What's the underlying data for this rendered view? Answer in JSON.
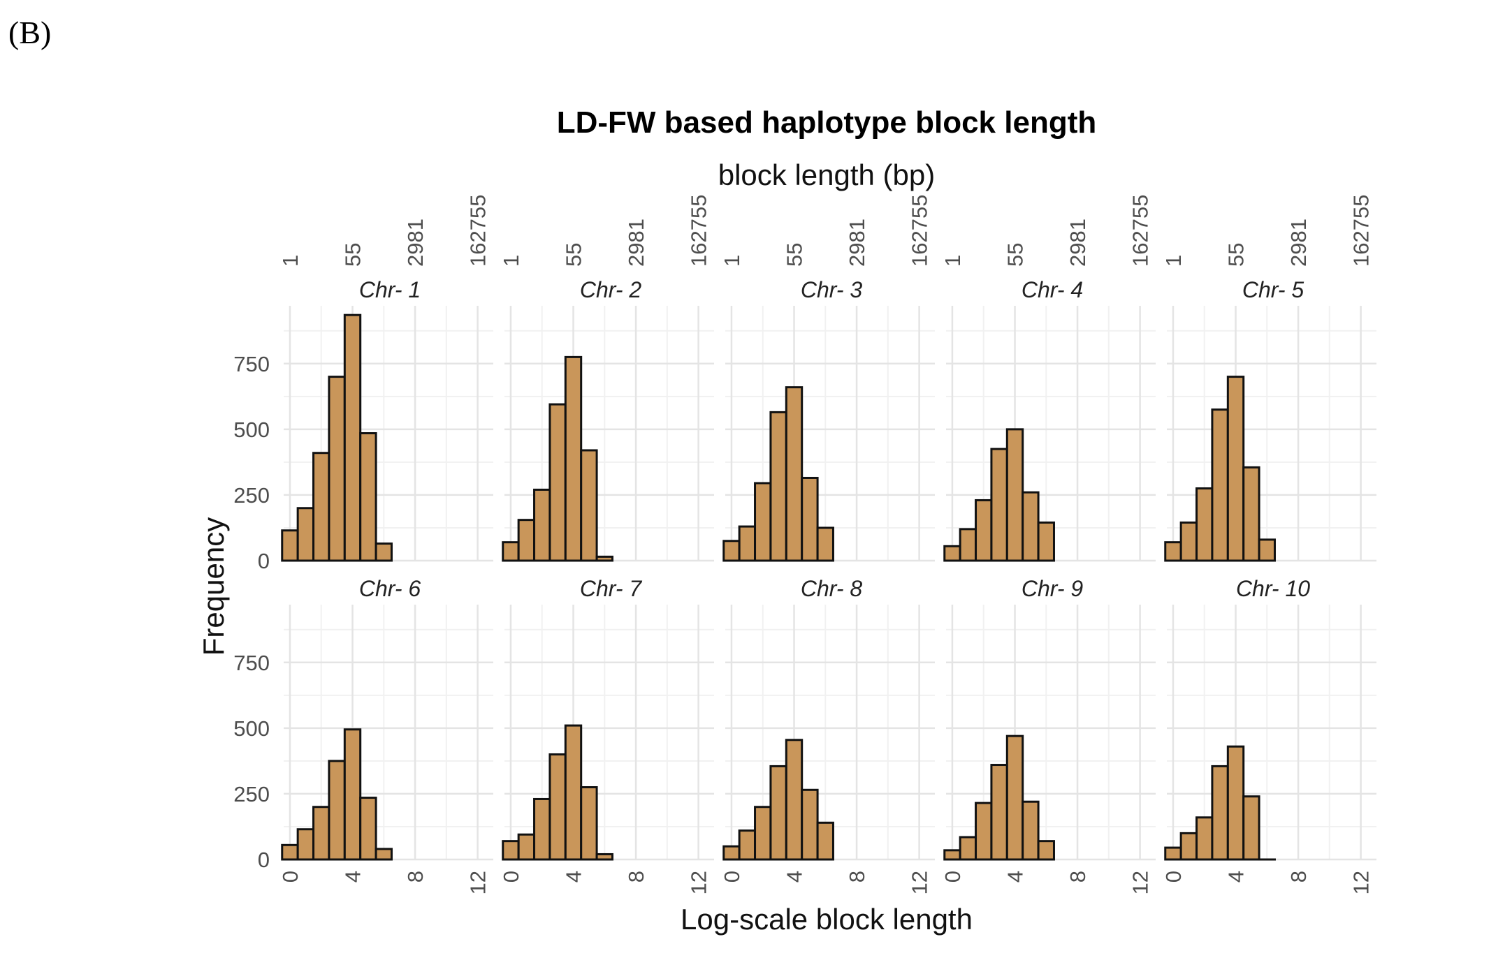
{
  "panel_label": "(B)",
  "chart_data": {
    "type": "bar",
    "title": "LD-FW based haplotype block length",
    "secondary_xlabel": "block length (bp)",
    "xlabel": "Log-scale block length",
    "ylabel": "Frequency",
    "xlim": [
      -0.4,
      13
    ],
    "ylim": [
      0,
      970
    ],
    "x_ticks": [
      0,
      4,
      8,
      12
    ],
    "x_tick_labels": [
      "0",
      "4",
      "8",
      "12"
    ],
    "secondary_x_ticks": [
      0,
      4,
      8,
      12
    ],
    "secondary_x_tick_labels": [
      "1",
      "55",
      "2981",
      "162755"
    ],
    "y_ticks": [
      0,
      250,
      500,
      750
    ],
    "y_tick_labels": [
      "0",
      "250",
      "500",
      "750"
    ],
    "grid": true,
    "bar_color": "#C9965A",
    "bar_edge_color": "#111111",
    "bin_width": 1,
    "bin_centers": [
      0,
      1,
      2,
      3,
      4,
      5,
      6
    ],
    "panels": [
      {
        "name": "Chr- 1",
        "values": [
          115,
          200,
          410,
          700,
          935,
          485,
          65
        ]
      },
      {
        "name": "Chr- 2",
        "values": [
          70,
          155,
          270,
          595,
          775,
          420,
          15
        ]
      },
      {
        "name": "Chr- 3",
        "values": [
          75,
          130,
          295,
          565,
          660,
          315,
          125
        ]
      },
      {
        "name": "Chr- 4",
        "values": [
          55,
          120,
          230,
          425,
          500,
          260,
          145
        ]
      },
      {
        "name": "Chr- 5",
        "values": [
          70,
          145,
          275,
          575,
          700,
          355,
          80
        ]
      },
      {
        "name": "Chr- 6",
        "values": [
          55,
          115,
          200,
          375,
          495,
          235,
          40
        ]
      },
      {
        "name": "Chr- 7",
        "values": [
          70,
          95,
          230,
          400,
          510,
          275,
          20
        ]
      },
      {
        "name": "Chr- 8",
        "values": [
          50,
          110,
          200,
          355,
          455,
          265,
          140
        ]
      },
      {
        "name": "Chr- 9",
        "values": [
          35,
          85,
          215,
          360,
          470,
          220,
          70
        ]
      },
      {
        "name": "Chr- 10",
        "values": [
          45,
          100,
          160,
          355,
          430,
          240,
          0
        ]
      }
    ]
  }
}
